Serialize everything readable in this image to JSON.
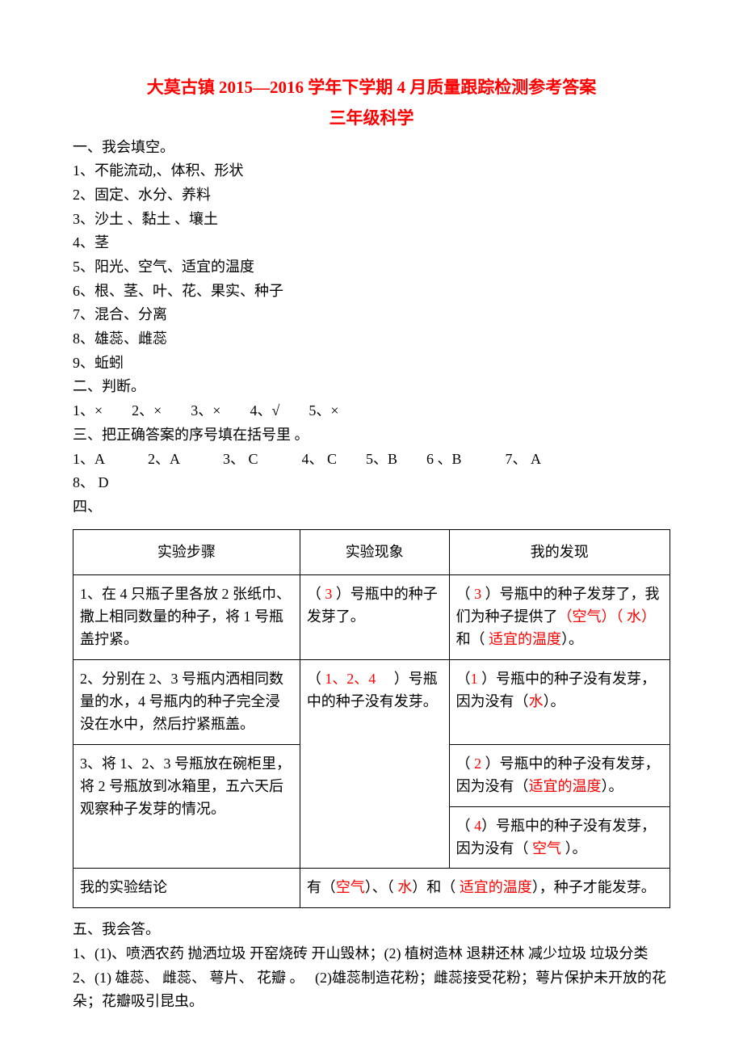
{
  "title_line1": "大莫古镇 2015—2016 学年下学期 4 月质量跟踪检测参考答案",
  "title_line2": "三年级科学",
  "sec1_heading": "一、我会填空。",
  "sec1_items": [
    "1、不能流动,、体积、形状",
    "2、固定、水分、养料",
    "3、沙土 、黏土 、壤土",
    "4、茎",
    "5、阳光、空气、适宜的温度",
    "6、根、茎、叶、花、果实、种子",
    "7、混合、分离",
    "8、雄蕊、雌蕊",
    "9、蚯蚓"
  ],
  "sec2_heading": "二、判断。",
  "sec2_line": "1、×　　2、×　　3、×　　4、√　　5、×",
  "sec3_heading": "三、把正确答案的序号填在括号里 。",
  "sec3_line1": "1、A　　　2、A　　　3、 C　　　4、 C　　5、B　　6 、B　　　7、 A",
  "sec3_line2": "8、 D",
  "sec4_heading": "四、",
  "table": {
    "headers": [
      "实验步骤",
      "实验现象",
      "我的发现"
    ],
    "row1_col1": "1、在 4 只瓶子里各放 2 张纸巾、撒上相同数量的种子，将 1 号瓶盖拧紧。",
    "row1_col2_pre": "（",
    "row1_col2_num": " 3 ",
    "row1_col2_post": "）号瓶中的种子发芽了。",
    "row1_col3_a": "（",
    "row1_col3_num": " 3 ",
    "row1_col3_b": "）号瓶中的种子发芽了，我们为种子提供了",
    "row1_col3_c": "（空气）（ 水）",
    "row1_col3_d": "和（ ",
    "row1_col3_e": "适宜的温度",
    "row1_col3_f": "）。",
    "row2_col1": "2、分别在 2、3 号瓶内洒相同数量的水，4 号瓶内的种子完全浸没在水中，然后拧紧瓶盖。",
    "row23_col2_a": "（ ",
    "row23_col2_nums": "1、2、4 ",
    "row23_col2_b": "　）号瓶中的种子没有发芽。",
    "row2_col3_a": "（",
    "row2_col3_num": "1 ",
    "row2_col3_b": "）号瓶中的种子没有发芽，因为没有（",
    "row2_col3_c": "水",
    "row2_col3_d": "）。",
    "row3_col1": "3、将 1、2、3 号瓶放在碗柜里，将 2 号瓶放到冰箱里，五六天后观察种子发芽的情况。",
    "row3_col3_a": "（ ",
    "row3_col3_num": "2 ",
    "row3_col3_b": "）号瓶中的种子没有发芽，因为没有（",
    "row3_col3_c": "适宜的温度",
    "row3_col3_d": "）。",
    "row4_col3_a": "（ ",
    "row4_col3_num": "4",
    "row4_col3_b": "）号瓶中的种子没有发芽，因为没有（ ",
    "row4_col3_c": "空气 ",
    "row4_col3_d": "）。",
    "row5_col1": "我的实验结论",
    "row5_col23_a": "有（",
    "row5_col23_b": "空气",
    "row5_col23_c": "）、（ ",
    "row5_col23_d": "水",
    "row5_col23_e": "）和（ ",
    "row5_col23_f": "适宜的温度",
    "row5_col23_g": "），种子才能发芽。"
  },
  "sec5_heading": "五、我会答。",
  "sec5_q1": "1、(1)、喷洒农药 抛洒垃圾 开窑烧砖 开山毁林；(2) 植树造林 退耕还林 减少垃圾 垃圾分类",
  "sec5_q2": "2、(1) 雄蕊、 雌蕊、 萼片、 花瓣 。　 (2)雄蕊制造花粉；雌蕊接受花粉；萼片保护未开放的花朵；花瓣吸引昆虫。"
}
